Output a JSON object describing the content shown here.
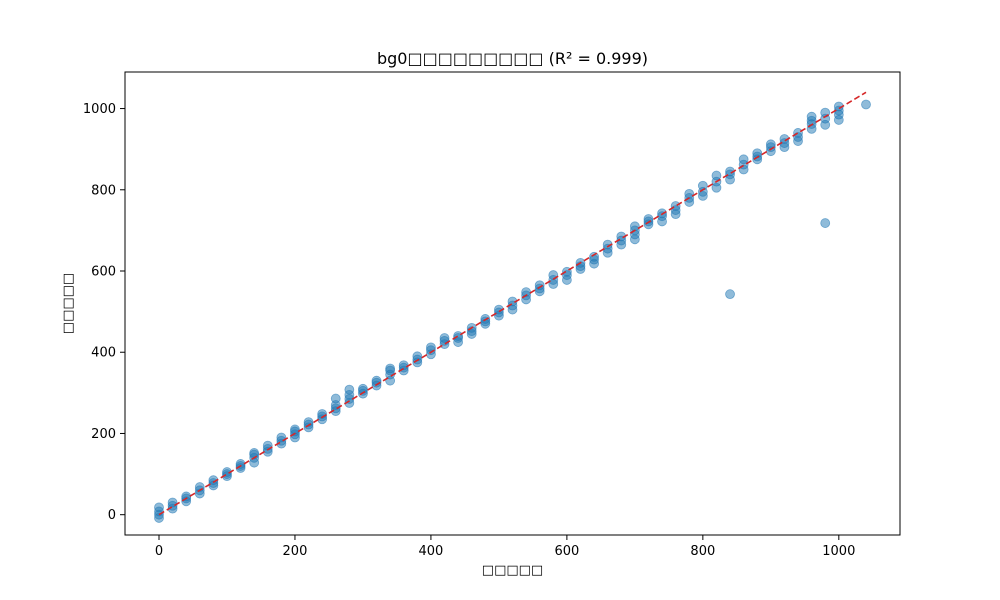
{
  "chart_data": {
    "type": "scatter",
    "title": "bg0□□□□□□□□□ (R² = 0.999)",
    "xlabel": "□□□□□",
    "ylabel": "□□□□□",
    "xlim": [
      -50,
      1090
    ],
    "ylim": [
      -50,
      1090
    ],
    "xticks": [
      0,
      200,
      400,
      600,
      800,
      1000
    ],
    "yticks": [
      0,
      200,
      400,
      600,
      800,
      1000
    ],
    "grid": false,
    "point_color": "#1f77b4",
    "fit_line_color": "#d62728",
    "fit_line": {
      "x": [
        0,
        1040
      ],
      "y": [
        0,
        1040
      ],
      "style": "dashed"
    },
    "series": [
      {
        "x": [
          0,
          0,
          0,
          0,
          20,
          20,
          20,
          40,
          40,
          40,
          60,
          60,
          60,
          80,
          80,
          80,
          100,
          100,
          100,
          120,
          120,
          120,
          140,
          140,
          140,
          140,
          160,
          160,
          160,
          180,
          180,
          180,
          200,
          200,
          200,
          200,
          220,
          220,
          220,
          240,
          240,
          240,
          260,
          260,
          260,
          260,
          280,
          280,
          280,
          280,
          300,
          300,
          300,
          320,
          320,
          320,
          340,
          340,
          340,
          340,
          360,
          360,
          360,
          380,
          380,
          380,
          400,
          400,
          400,
          420,
          420,
          420,
          440,
          440,
          440,
          460,
          460,
          460,
          480,
          480,
          480,
          500,
          500,
          500,
          520,
          520,
          520,
          540,
          540,
          540,
          560,
          560,
          560,
          580,
          580,
          580,
          600,
          600,
          600,
          620,
          620,
          620,
          640,
          640,
          640,
          660,
          660,
          660,
          680,
          680,
          680,
          700,
          700,
          700,
          700,
          720,
          720,
          720,
          740,
          740,
          740,
          760,
          760,
          760,
          780,
          780,
          780,
          800,
          800,
          800,
          820,
          820,
          820,
          840,
          840,
          840,
          860,
          860,
          860,
          880,
          880,
          880,
          900,
          900,
          900,
          920,
          920,
          920,
          940,
          940,
          940,
          960,
          960,
          960,
          960,
          980,
          980,
          980,
          1000,
          1000,
          1000,
          1000,
          840,
          980,
          1040
        ],
        "y": [
          -8,
          0,
          8,
          18,
          15,
          22,
          30,
          33,
          40,
          45,
          52,
          60,
          68,
          72,
          78,
          85,
          95,
          100,
          105,
          115,
          120,
          125,
          128,
          140,
          148,
          152,
          155,
          162,
          170,
          175,
          182,
          190,
          190,
          198,
          205,
          210,
          215,
          222,
          228,
          235,
          242,
          248,
          255,
          262,
          270,
          286,
          275,
          285,
          295,
          308,
          298,
          305,
          310,
          318,
          325,
          330,
          330,
          345,
          355,
          360,
          355,
          362,
          368,
          375,
          382,
          390,
          395,
          405,
          412,
          420,
          428,
          435,
          425,
          435,
          440,
          445,
          452,
          460,
          470,
          476,
          482,
          490,
          498,
          505,
          505,
          515,
          525,
          530,
          540,
          548,
          550,
          557,
          565,
          568,
          578,
          590,
          578,
          590,
          598,
          605,
          612,
          620,
          618,
          628,
          635,
          645,
          655,
          665,
          665,
          675,
          685,
          678,
          690,
          700,
          710,
          715,
          722,
          728,
          722,
          735,
          742,
          740,
          750,
          760,
          770,
          780,
          790,
          785,
          795,
          810,
          805,
          820,
          835,
          825,
          838,
          845,
          850,
          862,
          875,
          875,
          882,
          890,
          895,
          905,
          912,
          905,
          915,
          925,
          920,
          930,
          940,
          950,
          962,
          970,
          980,
          960,
          975,
          990,
          972,
          985,
          995,
          1005,
          543,
          718,
          1010
        ]
      }
    ]
  }
}
